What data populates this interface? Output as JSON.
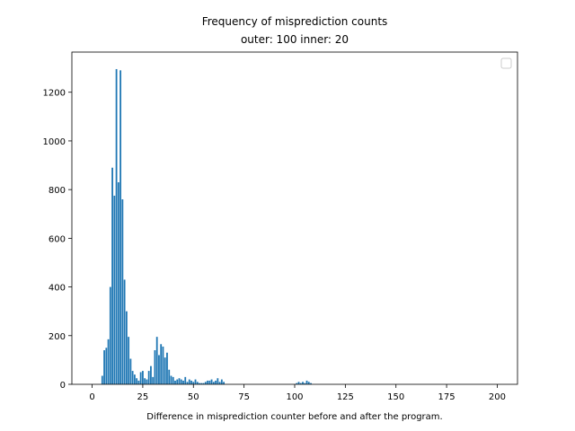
{
  "chart_data": {
    "type": "bar",
    "title": [
      "Frequency of misprediction counts",
      "outer: 100  inner: 20"
    ],
    "xlabel": "Difference in misprediction counter before and after the program.",
    "ylabel": "",
    "xlim": [
      -10,
      210
    ],
    "ylim": [
      0,
      1365
    ],
    "xticks": [
      "0",
      "25",
      "50",
      "75",
      "100",
      "125",
      "150",
      "175",
      "200"
    ],
    "xtick_values": [
      0,
      25,
      50,
      75,
      100,
      125,
      150,
      175,
      200
    ],
    "yticks": [
      "0",
      "200",
      "400",
      "600",
      "800",
      "1000",
      "1200"
    ],
    "ytick_values": [
      0,
      200,
      400,
      600,
      800,
      1000,
      1200
    ],
    "bar_color": "#1f77b4",
    "grid": false,
    "legend": {
      "placement": "top-right",
      "entries": []
    },
    "x": [
      5,
      6,
      7,
      8,
      9,
      10,
      11,
      12,
      13,
      14,
      15,
      16,
      17,
      18,
      19,
      20,
      21,
      22,
      23,
      24,
      25,
      26,
      27,
      28,
      29,
      30,
      31,
      32,
      33,
      34,
      35,
      36,
      37,
      38,
      39,
      40,
      41,
      42,
      43,
      44,
      45,
      46,
      47,
      48,
      49,
      50,
      51,
      52,
      53,
      54,
      55,
      56,
      57,
      58,
      59,
      60,
      61,
      62,
      63,
      64,
      65,
      101,
      102,
      103,
      104,
      105,
      106,
      107,
      108
    ],
    "values": [
      35,
      140,
      150,
      185,
      400,
      890,
      775,
      1295,
      830,
      1290,
      760,
      430,
      300,
      195,
      105,
      55,
      40,
      25,
      15,
      50,
      55,
      25,
      20,
      55,
      75,
      30,
      140,
      195,
      120,
      165,
      155,
      110,
      130,
      60,
      35,
      30,
      15,
      20,
      25,
      20,
      15,
      30,
      10,
      20,
      15,
      10,
      20,
      10,
      5,
      5,
      5,
      10,
      15,
      15,
      20,
      10,
      15,
      25,
      10,
      20,
      10,
      5,
      10,
      5,
      10,
      5,
      15,
      10,
      5
    ]
  }
}
